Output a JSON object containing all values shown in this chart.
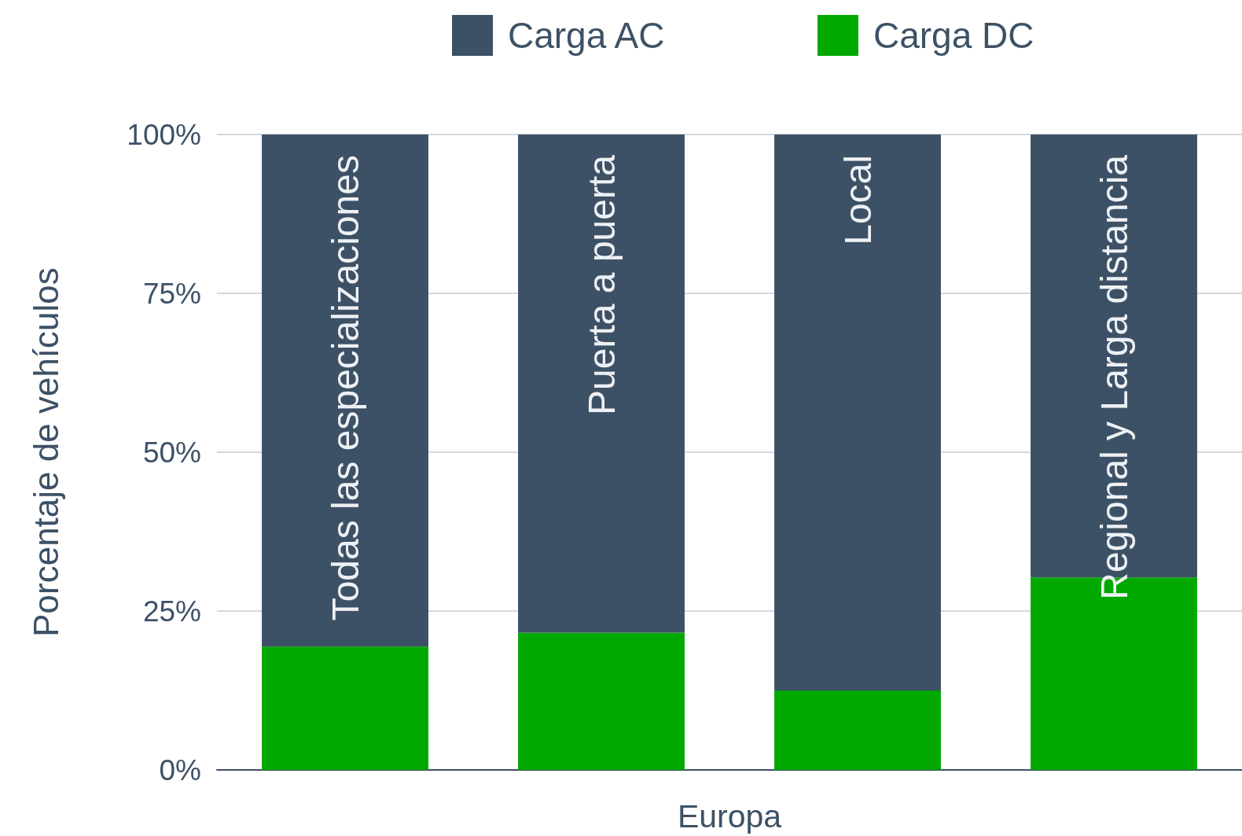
{
  "chart_data": {
    "type": "bar",
    "stacked": true,
    "categories": [
      "Todas las especializaciones",
      "Puerta a puerta",
      "Local",
      "Regional y Larga distancia"
    ],
    "series": [
      {
        "name": "Carga DC",
        "color": "#00a800",
        "values": [
          19.4,
          21.6,
          12.5,
          30.3
        ]
      },
      {
        "name": "Carga AC",
        "color": "#3d5166",
        "values": [
          80.6,
          78.4,
          87.5,
          69.7
        ]
      }
    ],
    "xlabel": "Europa",
    "ylabel": "Porcentaje de vehículos",
    "ylim": [
      0,
      100
    ],
    "yticks": [
      {
        "value": 0,
        "label": "0%"
      },
      {
        "value": 25,
        "label": "25%"
      },
      {
        "value": 50,
        "label": "50%"
      },
      {
        "value": 75,
        "label": "75%"
      },
      {
        "value": 100,
        "label": "100%"
      }
    ],
    "grid": "y",
    "legend": "top"
  }
}
